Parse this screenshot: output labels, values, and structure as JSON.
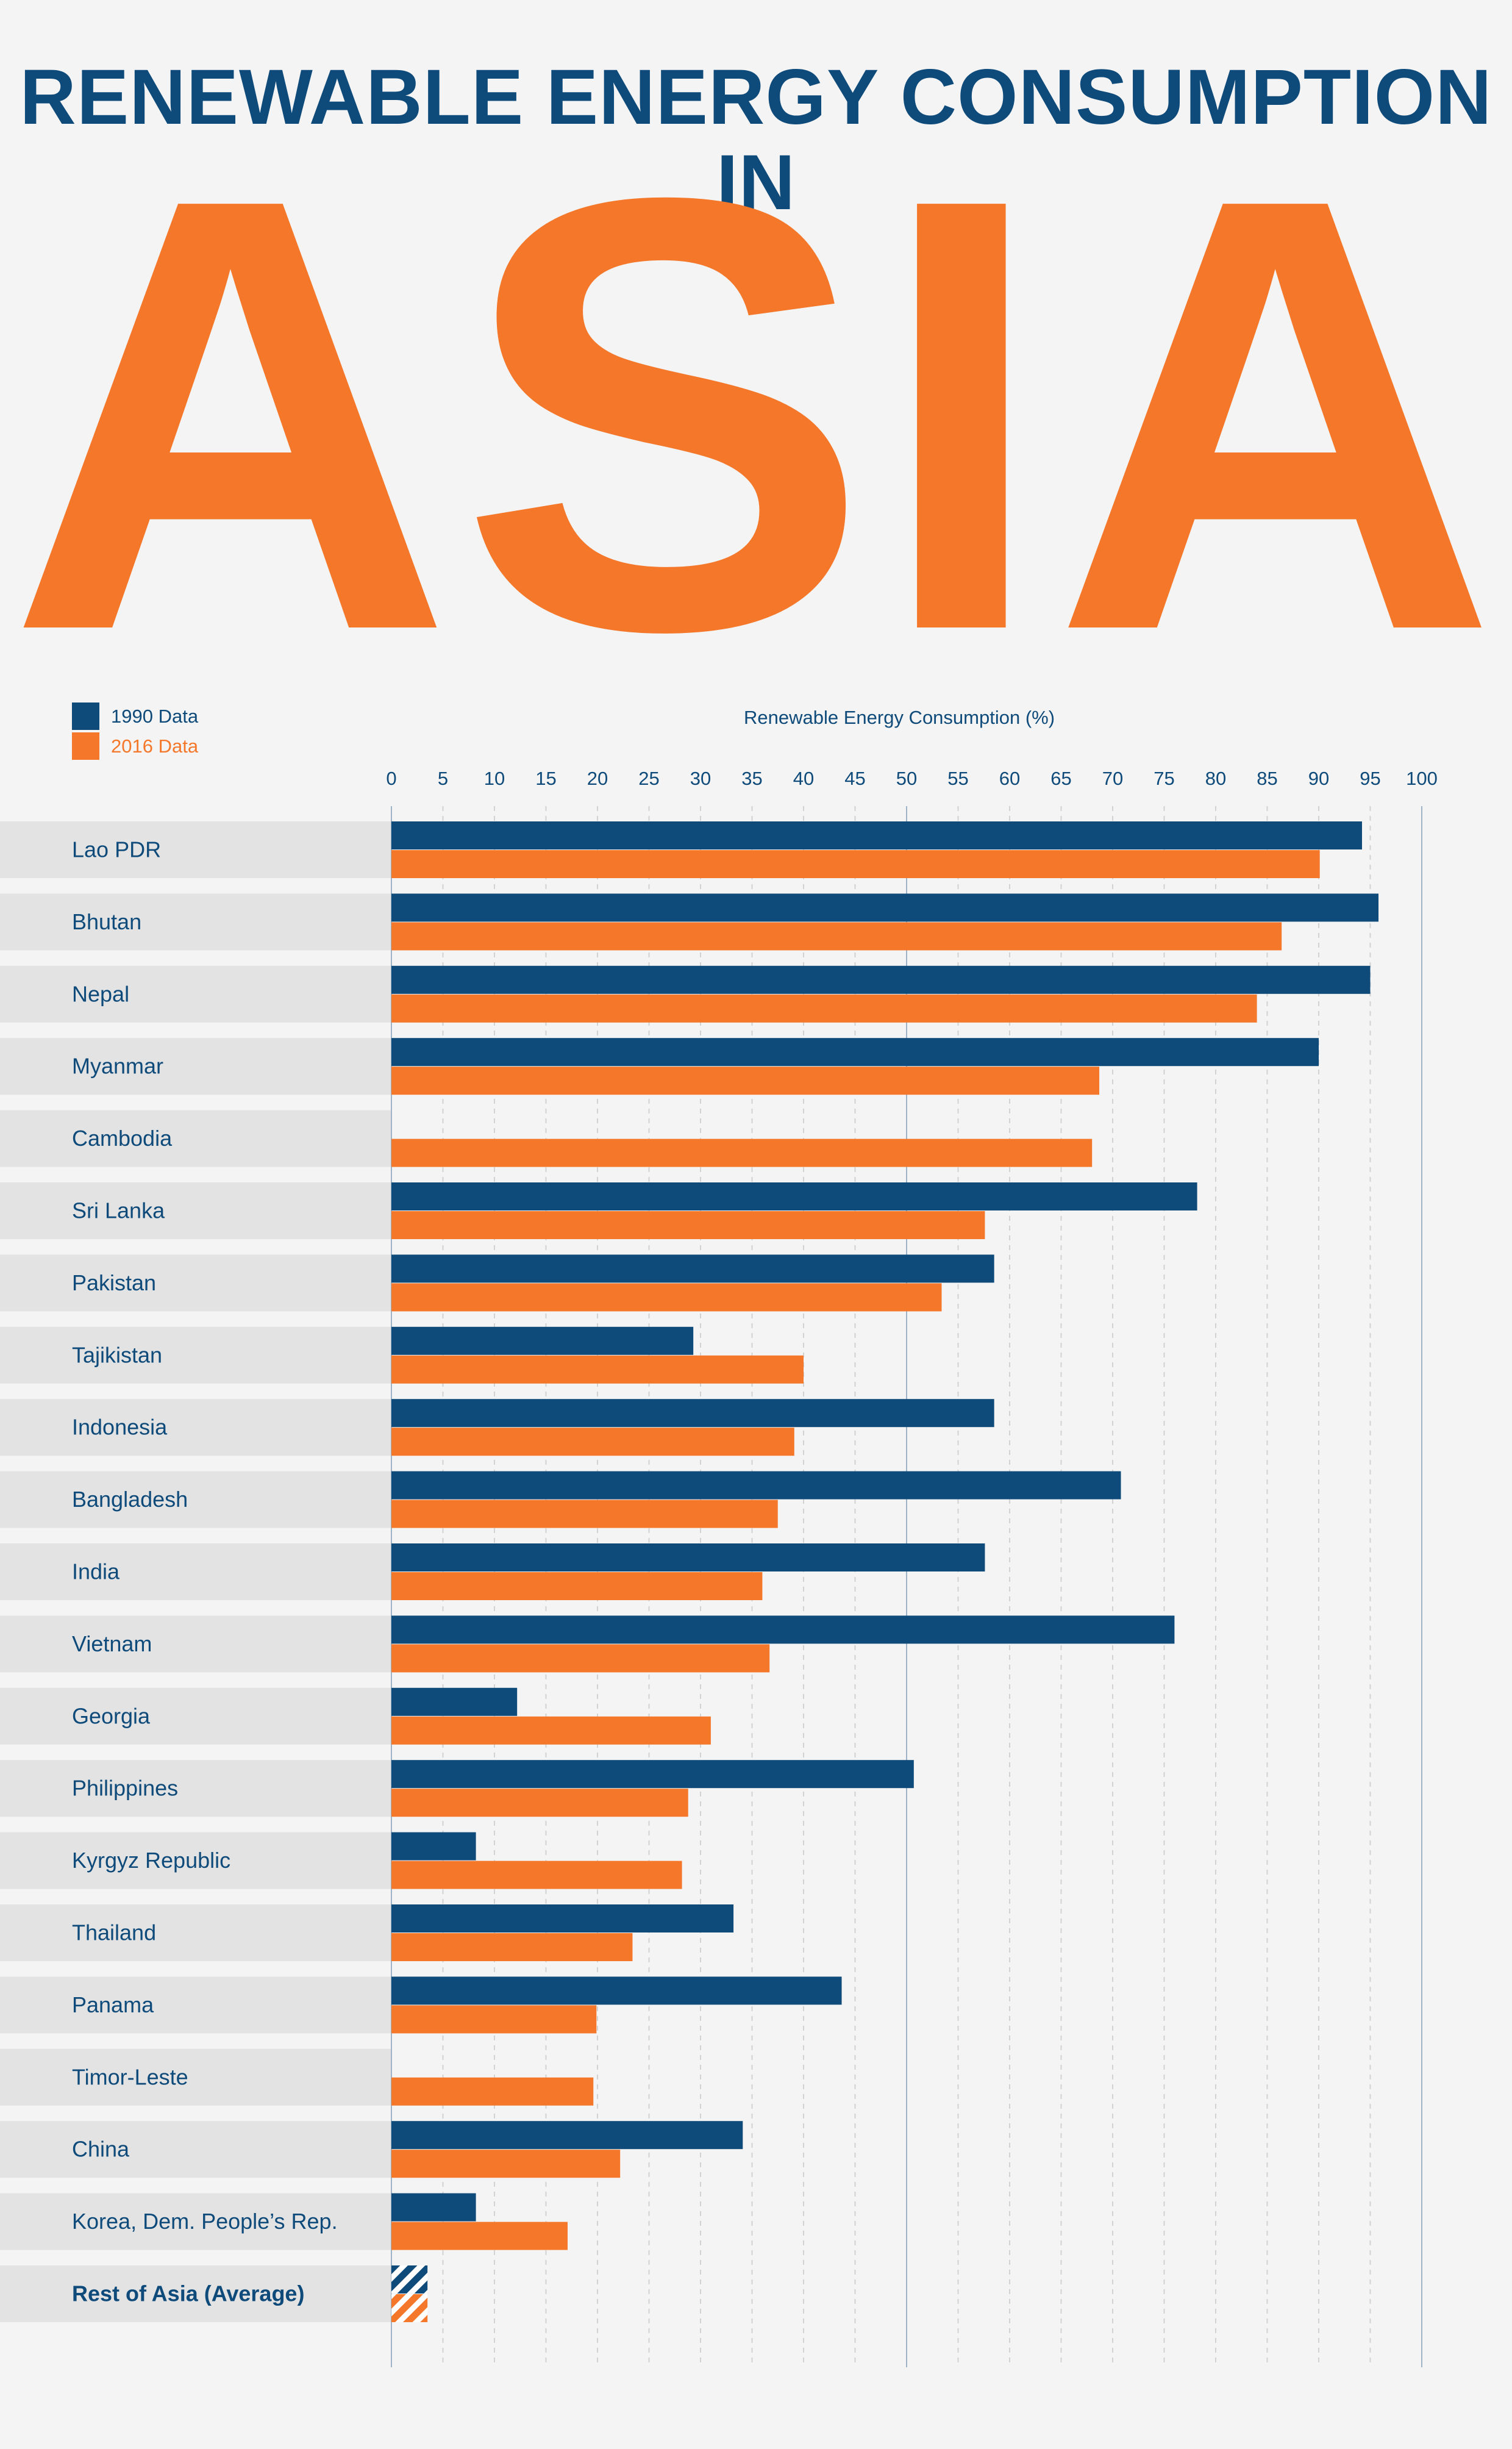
{
  "header": {
    "line1": "RENEWABLE ENERGY CONSUMPTION IN",
    "line2": "ASIA"
  },
  "colors": {
    "series_1990": "#0e4a7a",
    "series_2016": "#f5772a",
    "label_band": "#e3e3e3",
    "background": "#f4f4f4"
  },
  "chart_data": {
    "type": "bar",
    "orientation": "horizontal",
    "title": "",
    "xlabel": "Renewable Energy Consumption (%)",
    "xlim": [
      0,
      100
    ],
    "xticks": [
      0,
      5,
      10,
      15,
      20,
      25,
      30,
      35,
      40,
      45,
      50,
      55,
      60,
      65,
      70,
      75,
      80,
      85,
      90,
      95,
      100
    ],
    "grid": "vertical dashed lines every 5, solid every 50",
    "legend_placement": "top-left",
    "categories": [
      "Lao PDR",
      "Bhutan",
      "Nepal",
      "Myanmar",
      "Cambodia",
      "Sri Lanka",
      "Pakistan",
      "Tajikistan",
      "Indonesia",
      "Bangladesh",
      "India",
      "Vietnam",
      "Georgia",
      "Philippines",
      "Kyrgyz Republic",
      "Thailand",
      "Panama",
      "Timor-Leste",
      "China",
      "Korea, Dem. People’s Rep.",
      "Rest of Asia (Average)"
    ],
    "series": [
      {
        "name": "1990 Data",
        "values": [
          94.2,
          95.8,
          95.0,
          90.0,
          null,
          78.2,
          58.5,
          29.3,
          58.5,
          70.8,
          57.6,
          76.0,
          12.2,
          50.7,
          8.2,
          33.2,
          43.7,
          null,
          34.1,
          8.2,
          3.5
        ]
      },
      {
        "name": "2016 Data",
        "values": [
          90.1,
          86.4,
          84.0,
          68.7,
          68.0,
          57.6,
          53.4,
          40.0,
          39.1,
          37.5,
          36.0,
          36.7,
          31.0,
          28.8,
          28.2,
          23.4,
          19.9,
          19.6,
          22.2,
          17.1,
          3.5
        ]
      }
    ],
    "highlighted_category": "Rest of Asia (Average)",
    "highlight_note_style": "hatched bars"
  }
}
